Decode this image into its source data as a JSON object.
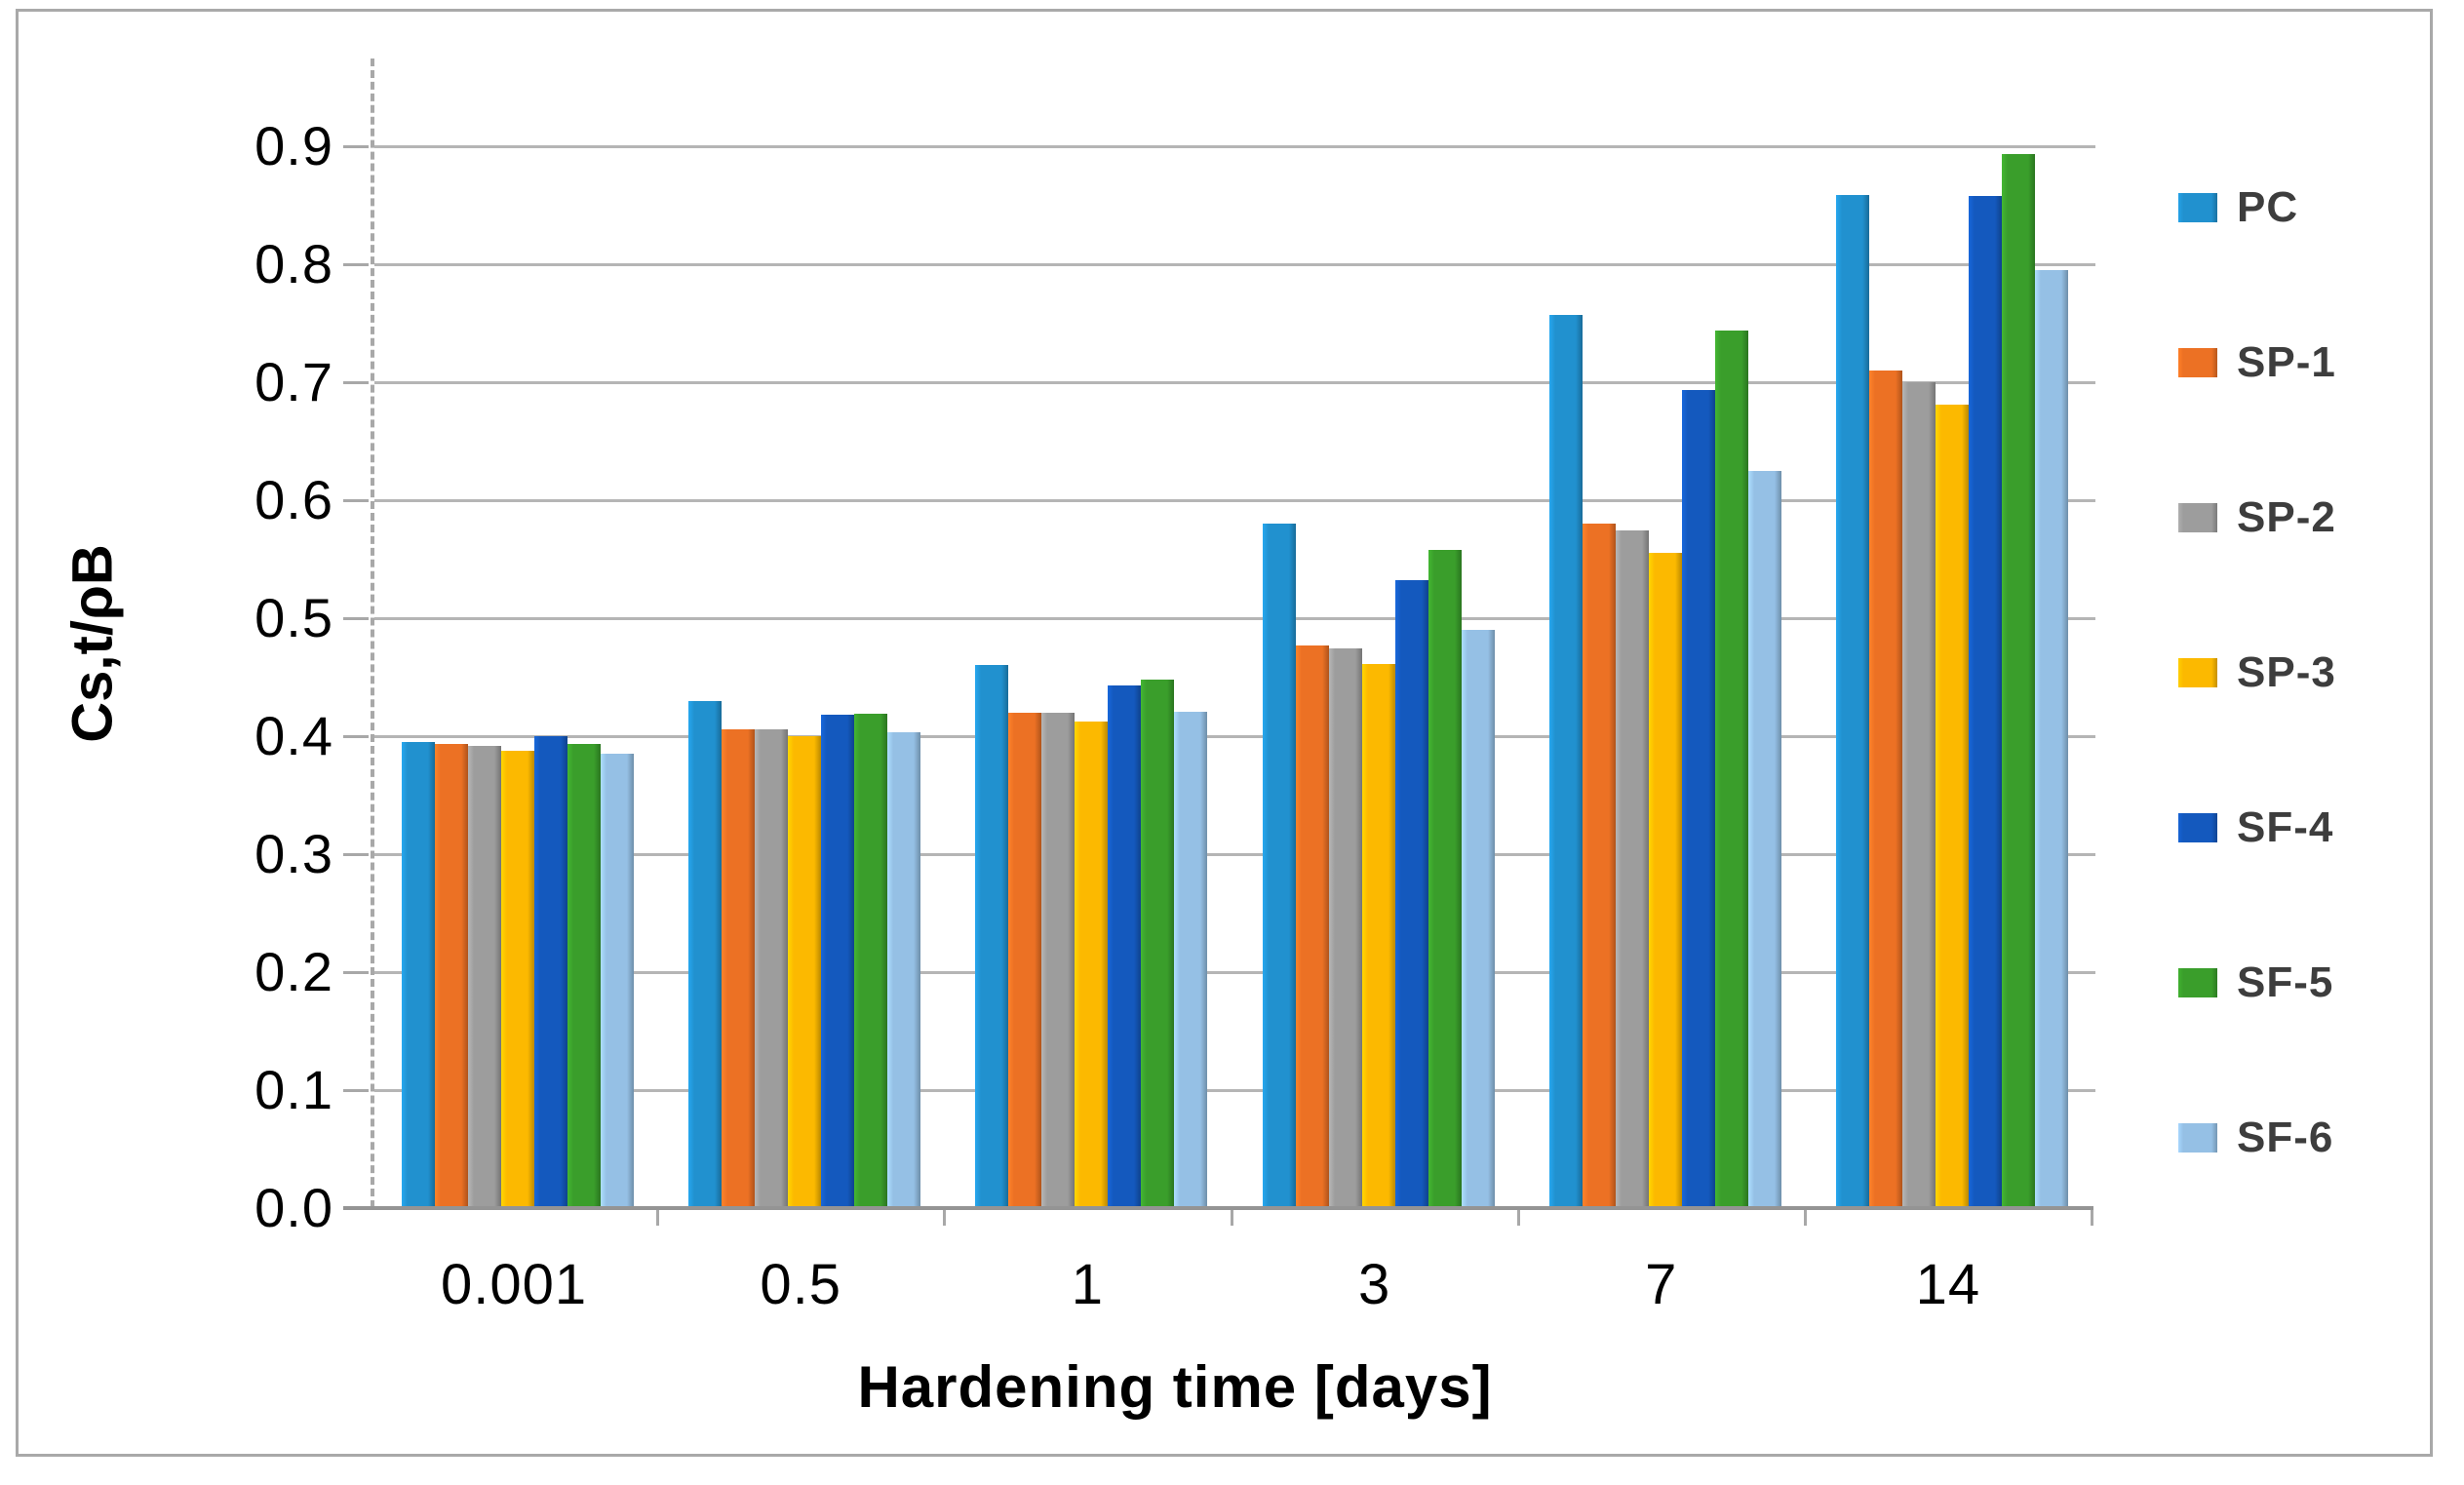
{
  "figure": {
    "background": "#ffffff",
    "border_color": "#a9a9a9",
    "gridline_color": "#b5b5b5",
    "axis_color": "#a8a8a8"
  },
  "chart_data": {
    "type": "bar",
    "title": "",
    "xlabel": "Hardening time [days]",
    "ylabel": "Cs,t/ρB",
    "categories": [
      "0.001",
      "0.5",
      "1",
      "3",
      "7",
      "14"
    ],
    "series": [
      {
        "name": "PC",
        "color": "#2191CF",
        "values": [
          0.395,
          0.43,
          0.46,
          0.58,
          0.757,
          0.859
        ]
      },
      {
        "name": "SP-1",
        "color": "#EC7124",
        "values": [
          0.393,
          0.406,
          0.42,
          0.477,
          0.58,
          0.71
        ]
      },
      {
        "name": "SP-2",
        "color": "#9D9D9D",
        "values": [
          0.392,
          0.406,
          0.42,
          0.474,
          0.574,
          0.7
        ]
      },
      {
        "name": "SP-3",
        "color": "#FCB900",
        "values": [
          0.388,
          0.4,
          0.412,
          0.461,
          0.555,
          0.681
        ]
      },
      {
        "name": "SF-4",
        "color": "#1459BE",
        "values": [
          0.4,
          0.418,
          0.443,
          0.532,
          0.693,
          0.858
        ]
      },
      {
        "name": "SF-5",
        "color": "#3A9E2B",
        "values": [
          0.393,
          0.419,
          0.448,
          0.558,
          0.744,
          0.893
        ]
      },
      {
        "name": "SF-6",
        "color": "#95C0E5",
        "values": [
          0.385,
          0.403,
          0.421,
          0.49,
          0.625,
          0.795
        ]
      }
    ],
    "ylim": [
      0.0,
      0.9
    ],
    "ytick_step": 0.1,
    "ytick_labels": [
      "0.0",
      "0.1",
      "0.2",
      "0.3",
      "0.4",
      "0.5",
      "0.6",
      "0.7",
      "0.8",
      "0.9"
    ],
    "grid": "horizontal",
    "legend_position": "right"
  }
}
